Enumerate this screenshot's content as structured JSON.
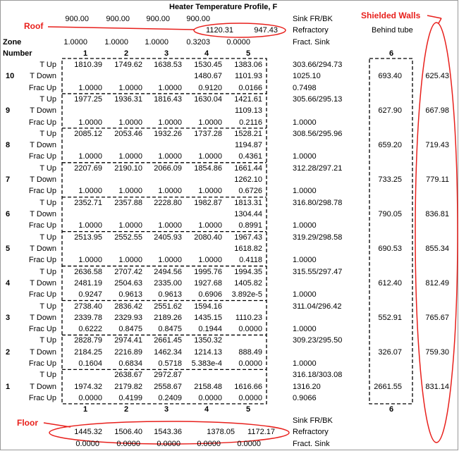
{
  "title": "Heater Temperature Profile, F",
  "annotations": {
    "roof": "Roof",
    "shielded_walls": "Shielded Walls",
    "floor": "Floor"
  },
  "top": {
    "rows": [
      {
        "cells": [
          "900.00",
          "900.00",
          "900.00",
          "900.00",
          null
        ],
        "label": "Sink FR/BK"
      },
      {
        "cells": [
          null,
          null,
          null,
          "1120.31",
          "947.43"
        ],
        "label": "Refractory",
        "note": "Behind tube"
      },
      {
        "cells": [
          "1.0000",
          "1.0000",
          "1.0000",
          "0.3203",
          "0.0000"
        ],
        "label": "Fract. Sink"
      }
    ]
  },
  "zone_header": "Zone",
  "number_header": "Number",
  "column_numbers": [
    "1",
    "2",
    "3",
    "4",
    "5"
  ],
  "column_6": "6",
  "zones": [
    {
      "number": "10",
      "col6": "693.40",
      "col7": "625.43",
      "rows": [
        {
          "label": "T Up",
          "cells": [
            "1810.39",
            "1749.62",
            "1638.53",
            "1530.45",
            "1383.06"
          ],
          "right": "303.66/294.73"
        },
        {
          "label": "T Down",
          "cells": [
            null,
            null,
            null,
            "1480.67",
            "1101.93"
          ],
          "right": "1025.10"
        },
        {
          "label": "Frac Up",
          "cells": [
            "1.0000",
            "1.0000",
            "1.0000",
            "0.9120",
            "0.0166"
          ],
          "right": "0.7498"
        }
      ]
    },
    {
      "number": "9",
      "col6": "627.90",
      "col7": "667.98",
      "rows": [
        {
          "label": "T Up",
          "cells": [
            "1977.25",
            "1936.31",
            "1816.43",
            "1630.04",
            "1421.61"
          ],
          "right": "305.66/295.13"
        },
        {
          "label": "T Down",
          "cells": [
            null,
            null,
            null,
            null,
            "1109.13"
          ],
          "right": null
        },
        {
          "label": "Frac Up",
          "cells": [
            "1.0000",
            "1.0000",
            "1.0000",
            "1.0000",
            "0.2116"
          ],
          "right": "1.0000"
        }
      ]
    },
    {
      "number": "8",
      "col6": "659.20",
      "col7": "719.43",
      "rows": [
        {
          "label": "T Up",
          "cells": [
            "2085.12",
            "2053.46",
            "1932.26",
            "1737.28",
            "1528.21"
          ],
          "right": "308.56/295.96"
        },
        {
          "label": "T Down",
          "cells": [
            null,
            null,
            null,
            null,
            "1194.87"
          ],
          "right": null
        },
        {
          "label": "Frac Up",
          "cells": [
            "1.0000",
            "1.0000",
            "1.0000",
            "1.0000",
            "0.4361"
          ],
          "right": "1.0000"
        }
      ]
    },
    {
      "number": "7",
      "col6": "733.25",
      "col7": "779.11",
      "rows": [
        {
          "label": "T Up",
          "cells": [
            "2207.69",
            "2190.10",
            "2066.09",
            "1854.86",
            "1661.44"
          ],
          "right": "312.28/297.21"
        },
        {
          "label": "T Down",
          "cells": [
            null,
            null,
            null,
            null,
            "1262.10"
          ],
          "right": null
        },
        {
          "label": "Frac Up",
          "cells": [
            "1.0000",
            "1.0000",
            "1.0000",
            "1.0000",
            "0.6726"
          ],
          "right": "1.0000"
        }
      ]
    },
    {
      "number": "6",
      "col6": "790.05",
      "col7": "836.81",
      "rows": [
        {
          "label": "T Up",
          "cells": [
            "2352.71",
            "2357.88",
            "2228.80",
            "1982.87",
            "1813.31"
          ],
          "right": "316.80/298.78"
        },
        {
          "label": "T Down",
          "cells": [
            null,
            null,
            null,
            null,
            "1304.44"
          ],
          "right": null
        },
        {
          "label": "Frac Up",
          "cells": [
            "1.0000",
            "1.0000",
            "1.0000",
            "1.0000",
            "0.8991"
          ],
          "right": "1.0000"
        }
      ]
    },
    {
      "number": "5",
      "col6": "690.53",
      "col7": "855.34",
      "rows": [
        {
          "label": "T Up",
          "cells": [
            "2513.95",
            "2552.55",
            "2405.93",
            "2080.40",
            "1967.43"
          ],
          "right": "319.29/298.58"
        },
        {
          "label": "T Down",
          "cells": [
            null,
            null,
            null,
            null,
            "1618.82"
          ],
          "right": null
        },
        {
          "label": "Frac Up",
          "cells": [
            "1.0000",
            "1.0000",
            "1.0000",
            "1.0000",
            "0.4118"
          ],
          "right": "1.0000"
        }
      ]
    },
    {
      "number": "4",
      "col6": "612.40",
      "col7": "812.49",
      "rows": [
        {
          "label": "T Up",
          "cells": [
            "2636.58",
            "2707.42",
            "2494.56",
            "1995.76",
            "1994.35"
          ],
          "right": "315.55/297.47"
        },
        {
          "label": "T Down",
          "cells": [
            "2481.19",
            "2504.63",
            "2335.00",
            "1927.68",
            "1405.82"
          ],
          "right": null
        },
        {
          "label": "Frac Up",
          "cells": [
            "0.9247",
            "0.9613",
            "0.9613",
            "0.6906",
            "3.892e-5"
          ],
          "right": "1.0000"
        }
      ]
    },
    {
      "number": "3",
      "col6": "552.91",
      "col7": "765.67",
      "rows": [
        {
          "label": "T Up",
          "cells": [
            "2738.40",
            "2836.42",
            "2551.62",
            "1594.16",
            null
          ],
          "right": "311.04/296.42"
        },
        {
          "label": "T Down",
          "cells": [
            "2339.78",
            "2329.93",
            "2189.26",
            "1435.15",
            "1110.23"
          ],
          "right": null
        },
        {
          "label": "Frac Up",
          "cells": [
            "0.6222",
            "0.8475",
            "0.8475",
            "0.1944",
            "0.0000"
          ],
          "right": "1.0000"
        }
      ]
    },
    {
      "number": "2",
      "col6": "326.07",
      "col7": "759.30",
      "rows": [
        {
          "label": "T Up",
          "cells": [
            "2828.79",
            "2974.41",
            "2661.45",
            "1350.32",
            null
          ],
          "right": "309.23/295.50"
        },
        {
          "label": "T Down",
          "cells": [
            "2184.25",
            "2216.89",
            "1462.34",
            "1214.13",
            "888.49"
          ],
          "right": null
        },
        {
          "label": "Frac Up",
          "cells": [
            "0.1604",
            "0.6834",
            "0.5718",
            "5.383e-4",
            "0.0000"
          ],
          "right": "1.0000"
        }
      ]
    },
    {
      "number": "1",
      "col6": "2661.55",
      "col7": "831.14",
      "rows": [
        {
          "label": "T Up",
          "cells": [
            null,
            "2638.67",
            "2972.87",
            null,
            null
          ],
          "right": "316.18/303.08"
        },
        {
          "label": "T Down",
          "cells": [
            "1974.32",
            "2179.82",
            "2558.67",
            "2158.48",
            "1616.66"
          ],
          "right": "1316.20"
        },
        {
          "label": "Frac Up",
          "cells": [
            "0.0000",
            "0.4199",
            "0.2409",
            "0.0000",
            "0.0000"
          ],
          "right": "0.9066"
        }
      ]
    }
  ],
  "bottom": {
    "column_numbers": [
      "1",
      "2",
      "3",
      "4",
      "5"
    ],
    "column_6": "6",
    "rows": [
      {
        "cells": [
          null,
          null,
          null,
          null,
          null
        ],
        "label": "Sink FR/BK"
      },
      {
        "cells": [
          "1445.32",
          "1506.40",
          "1543.36",
          "1378.05",
          "1172.17"
        ],
        "label": "Refractory"
      },
      {
        "cells": [
          "0.0000",
          "0.0000",
          "0.0000",
          "0.0000",
          "0.0000"
        ],
        "label": "Fract. Sink"
      }
    ]
  }
}
